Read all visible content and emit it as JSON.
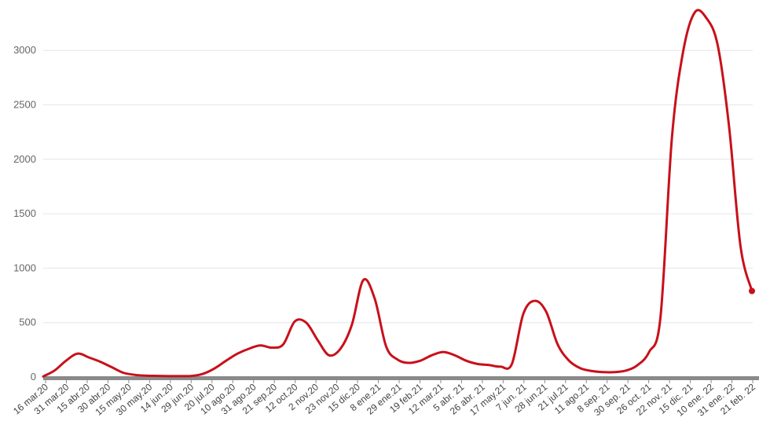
{
  "chart_data": {
    "type": "line",
    "title": "",
    "xlabel": "",
    "ylabel": "",
    "ylim": [
      0,
      3500
    ],
    "yticks": [
      0,
      500,
      1000,
      1500,
      2000,
      2500,
      3000
    ],
    "ytick_labels": [
      "0",
      "500",
      "1000",
      "1500",
      "2000",
      "2500",
      "3000"
    ],
    "grid": true,
    "legend": "none",
    "colors": {
      "line": "#c8101a",
      "axis": "#8a8a8a",
      "grid": "#e6e6e6"
    },
    "xtick_labels": [
      "16 mar.20",
      "31 mar.20",
      "15 abr.20",
      "30 abr.20",
      "15 may.20",
      "30 may.20",
      "14 jun.20",
      "29 jun.20",
      "20 jul.20",
      "10 ago.20",
      "31 ago.20",
      "21 sep.20",
      "12 oct.20",
      "2 nov.20",
      "23 nov.20",
      "15 dic.20",
      "8 ene.21",
      "29 ene.21",
      "19 feb.21",
      "12 mar.21",
      "5 abr. 21",
      "26 abr. 21",
      "17 may.21",
      "7 jun. 21",
      "28 jun.21",
      "21 jul.21",
      "11 ago.21",
      "8 sep. 21",
      "30 sep. 21",
      "26 oct. 21",
      "22 nov. 21",
      "15 dic. 21",
      "10 ene. 22",
      "31 ene. 22",
      "21 feb. 22"
    ],
    "series": [
      {
        "values": [
          5,
          60,
          150,
          215,
          180,
          140,
          90,
          40,
          20,
          12,
          10,
          8,
          8,
          10,
          30,
          80,
          150,
          215,
          260,
          290,
          270,
          300,
          510,
          500,
          340,
          200,
          260,
          480,
          890,
          720,
          280,
          160,
          130,
          150,
          200,
          230,
          200,
          150,
          120,
          110,
          95,
          120,
          580,
          700,
          600,
          300,
          150,
          80,
          55,
          45,
          45,
          60,
          110,
          230,
          550,
          2200,
          3000,
          3350,
          3300,
          3050,
          2300,
          1200,
          790
        ]
      }
    ]
  }
}
